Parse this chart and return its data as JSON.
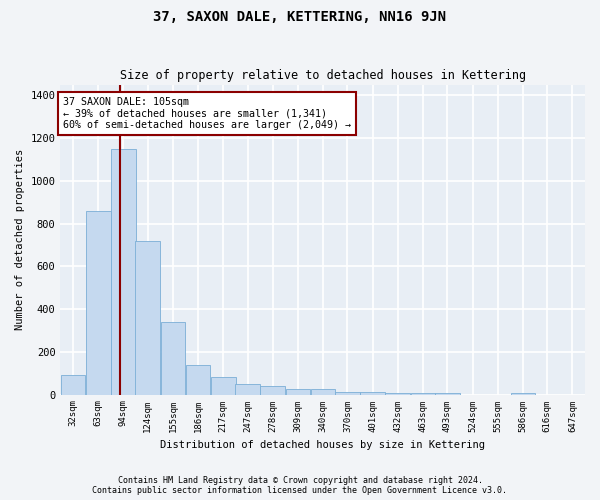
{
  "title": "37, SAXON DALE, KETTERING, NN16 9JN",
  "subtitle": "Size of property relative to detached houses in Kettering",
  "xlabel": "Distribution of detached houses by size in Kettering",
  "ylabel": "Number of detached properties",
  "bar_color": "#c5d9ef",
  "bar_edgecolor": "#7aaed6",
  "background_color": "#e8eef5",
  "fig_background": "#f2f4f7",
  "grid_color": "#ffffff",
  "vline_x": 105,
  "vline_color": "#8b0000",
  "annotation_text": "37 SAXON DALE: 105sqm\n← 39% of detached houses are smaller (1,341)\n60% of semi-detached houses are larger (2,049) →",
  "annotation_box_facecolor": "#ffffff",
  "annotation_box_edgecolor": "#8b0000",
  "bins_left": [
    32,
    63,
    94,
    124,
    155,
    186,
    217,
    247,
    278,
    309,
    340,
    370,
    401,
    432,
    463,
    493,
    524,
    555,
    586,
    616,
    647
  ],
  "bin_width": 31,
  "bin_labels": [
    "32sqm",
    "63sqm",
    "94sqm",
    "124sqm",
    "155sqm",
    "186sqm",
    "217sqm",
    "247sqm",
    "278sqm",
    "309sqm",
    "340sqm",
    "370sqm",
    "401sqm",
    "432sqm",
    "463sqm",
    "493sqm",
    "524sqm",
    "555sqm",
    "586sqm",
    "616sqm",
    "647sqm"
  ],
  "values": [
    90,
    860,
    1150,
    720,
    340,
    140,
    80,
    50,
    40,
    25,
    25,
    10,
    10,
    5,
    5,
    5,
    0,
    0,
    5,
    0,
    0
  ],
  "ylim": [
    0,
    1450
  ],
  "yticks": [
    0,
    200,
    400,
    600,
    800,
    1000,
    1200,
    1400
  ],
  "footer1": "Contains HM Land Registry data © Crown copyright and database right 2024.",
  "footer2": "Contains public sector information licensed under the Open Government Licence v3.0."
}
